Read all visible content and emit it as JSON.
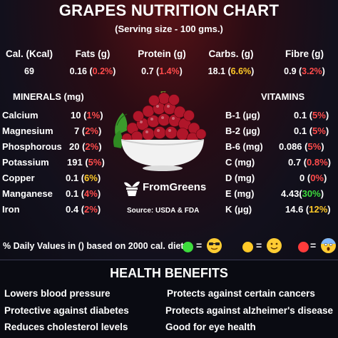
{
  "header": {
    "title": "GRAPES NUTRITION CHART",
    "serving": "(Serving size - 100 gms.)"
  },
  "macros": [
    {
      "label": "Cal. (Kcal)",
      "value": "69",
      "pct": ""
    },
    {
      "label": "Fats (g)",
      "value": "0.16",
      "pct": "0.2%"
    },
    {
      "label": "Protein (g)",
      "value": "0.7",
      "pct": "1.4%"
    },
    {
      "label": "Carbs. (g)",
      "value": "18.1",
      "pct": "6.6%"
    },
    {
      "label": "Fibre (g)",
      "value": "0.9",
      "pct": "3.2%"
    }
  ],
  "minerals": {
    "heading": "MINERALS (mg)",
    "items": [
      {
        "label": "Calcium",
        "value": "10",
        "pct": "1%"
      },
      {
        "label": "Magnesium",
        "value": "7",
        "pct": "2%"
      },
      {
        "label": "Phosphorous",
        "value": "20",
        "pct": "2%"
      },
      {
        "label": "Potassium",
        "value": "191",
        "pct": "5%"
      },
      {
        "label": "Copper",
        "value": "0.1",
        "pct": "6%"
      },
      {
        "label": "Manganese",
        "value": "0.1",
        "pct": "4%"
      },
      {
        "label": "Iron",
        "value": "0.4",
        "pct": "2%"
      }
    ]
  },
  "vitamins": {
    "heading": "VITAMINS",
    "items": [
      {
        "label": "B-1 (µg)",
        "value": "0.1",
        "pct": "5%"
      },
      {
        "label": "B-2 (µg)",
        "value": "0.1",
        "pct": "5%"
      },
      {
        "label": "B-6 (mg)",
        "value": "0.086",
        "pct": "5%"
      },
      {
        "label": "C (mg)",
        "value": "0.7",
        "pct": "0.8%"
      },
      {
        "label": "D (mg)",
        "value": "0",
        "pct": "0%"
      },
      {
        "label": "E (mg)",
        "value": "4.43",
        "pct": "30%"
      },
      {
        "label": "K (µg)",
        "value": "14.6",
        "pct": "12%"
      }
    ]
  },
  "brand": {
    "name": "FromGreens",
    "source": "Source: USDA & FDA"
  },
  "legend": {
    "text": "% Daily Values in () based on 2000 cal. diet",
    "eq": "=",
    "colors": {
      "low": "#ff3b3b",
      "moderate": "#ffc928",
      "high": "#3ddc3d"
    },
    "icons": [
      "cool-face-icon",
      "smile-face-icon",
      "shocked-face-icon"
    ]
  },
  "health": {
    "heading": "HEALTH BENEFITS",
    "items": [
      "Lowers blood pressure",
      "Protects against certain cancers",
      "Protective against diabetes",
      "Protects against alzheimer's disease",
      "Reduces cholesterol levels",
      "Good for eye health"
    ]
  }
}
